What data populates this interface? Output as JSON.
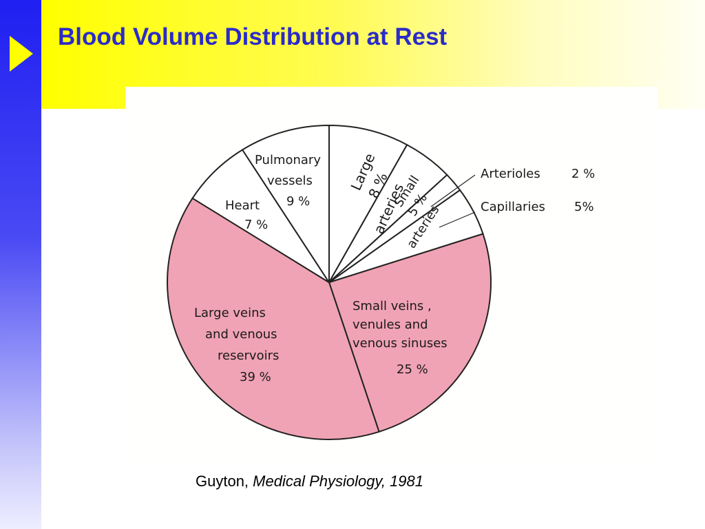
{
  "slide": {
    "title": "Blood Volume Distribution at Rest",
    "caption": {
      "author": "Guyton,",
      "work": "Medical Physiology, 1981"
    }
  },
  "colors": {
    "sidebar": "#1f1ff2",
    "arrow": "#ffff00",
    "title": "#2b2bc8",
    "venous_fill": "#f0a3b4",
    "other_fill": "#ffffff",
    "outline": "#222222"
  },
  "chart_data": {
    "type": "pie",
    "start": "top",
    "direction": "clockwise",
    "slices": [
      {
        "label": "Large arteries",
        "lines": [
          "Large",
          "8 %",
          "arteries"
        ],
        "value": 8,
        "fill": "#ffffff"
      },
      {
        "label": "Small arteries",
        "lines": [
          "Small",
          "5 %",
          "arteries"
        ],
        "value": 5,
        "fill": "#ffffff"
      },
      {
        "label": "Arterioles",
        "lines": [
          "Arterioles",
          "2 %"
        ],
        "value": 2,
        "fill": "#ffffff"
      },
      {
        "label": "Capillaries",
        "lines": [
          "Capillaries",
          "5%"
        ],
        "value": 5,
        "fill": "#ffffff"
      },
      {
        "label": "Small veins, venules and venous sinuses",
        "lines": [
          "Small   veins ,",
          "venules   and",
          "venous   sinuses",
          "25 %"
        ],
        "value": 25,
        "fill": "#f0a3b4"
      },
      {
        "label": "Large veins and venous reservoirs",
        "lines": [
          "Large  veins",
          "and  venous",
          "reservoirs",
          "39 %"
        ],
        "value": 39,
        "fill": "#f0a3b4"
      },
      {
        "label": "Heart",
        "lines": [
          "Heart",
          "7 %"
        ],
        "value": 7,
        "fill": "#ffffff"
      },
      {
        "label": "Pulmonary vessels",
        "lines": [
          "Pulmonary",
          "vessels",
          "9 %"
        ],
        "value": 9,
        "fill": "#ffffff"
      }
    ]
  }
}
